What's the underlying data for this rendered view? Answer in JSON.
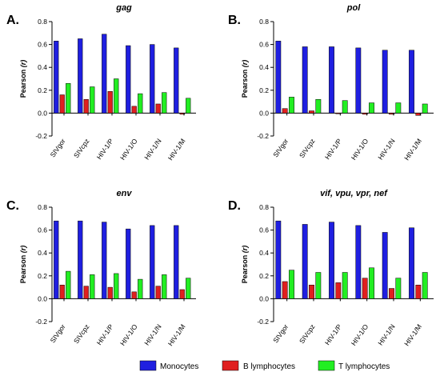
{
  "colors": {
    "monocytes": "#1f1fe0",
    "b_lymphocytes": "#e01f1f",
    "t_lymphocytes": "#22ee22"
  },
  "legend": [
    "Monocytes",
    "B lymphocytes",
    "T lymphocytes"
  ],
  "chart_data": [
    {
      "type": "bar",
      "letter": "A.",
      "title": "gag",
      "ylabel_main": "Pearson ",
      "ylabel_sym": "(r)",
      "categories": [
        "SIVgor",
        "SIVcpz",
        "HIV-1/P",
        "HIV-1/O",
        "HIV-1/N",
        "HIV-1/M"
      ],
      "series": [
        {
          "name": "Monocytes",
          "values": [
            0.63,
            0.65,
            0.69,
            0.59,
            0.6,
            0.57
          ]
        },
        {
          "name": "B lymphocytes",
          "values": [
            0.16,
            0.12,
            0.19,
            0.06,
            0.08,
            -0.01
          ]
        },
        {
          "name": "T lymphocytes",
          "values": [
            0.26,
            0.23,
            0.3,
            0.17,
            0.18,
            0.13
          ]
        }
      ],
      "ylim": [
        -0.2,
        0.8
      ],
      "yticks": [
        "-0.2",
        "0.0",
        "0.2",
        "0.4",
        "0.6",
        "0.8"
      ]
    },
    {
      "type": "bar",
      "letter": "B.",
      "title": "pol",
      "ylabel_main": "Pearson ",
      "ylabel_sym": "(r)",
      "categories": [
        "SIVgor",
        "SIVcpz",
        "HIV-1/P",
        "HIV-1/O",
        "HIV-1/N",
        "HIV-1/M"
      ],
      "series": [
        {
          "name": "Monocytes",
          "values": [
            0.63,
            0.58,
            0.58,
            0.57,
            0.55,
            0.55
          ]
        },
        {
          "name": "B lymphocytes",
          "values": [
            0.04,
            0.02,
            0.0,
            -0.01,
            -0.01,
            -0.02
          ]
        },
        {
          "name": "T lymphocytes",
          "values": [
            0.14,
            0.12,
            0.11,
            0.09,
            0.09,
            0.08
          ]
        }
      ],
      "ylim": [
        -0.2,
        0.8
      ],
      "yticks": [
        "-0.2",
        "0.0",
        "0.2",
        "0.4",
        "0.6",
        "0.8"
      ]
    },
    {
      "type": "bar",
      "letter": "C.",
      "title": "env",
      "ylabel_main": "Pearson ",
      "ylabel_sym": "(r)",
      "categories": [
        "SIVgor",
        "SIVcpz",
        "HIV-1/P",
        "HIV-1/O",
        "HIV-1/N",
        "HIV-1/M"
      ],
      "series": [
        {
          "name": "Monocytes",
          "values": [
            0.68,
            0.68,
            0.67,
            0.61,
            0.64,
            0.64
          ]
        },
        {
          "name": "B lymphocytes",
          "values": [
            0.12,
            0.11,
            0.1,
            0.06,
            0.11,
            0.08
          ]
        },
        {
          "name": "T lymphocytes",
          "values": [
            0.24,
            0.21,
            0.22,
            0.17,
            0.21,
            0.18
          ]
        }
      ],
      "ylim": [
        -0.2,
        0.8
      ],
      "yticks": [
        "-0.2",
        "0.0",
        "0.2",
        "0.4",
        "0.6",
        "0.8"
      ]
    },
    {
      "type": "bar",
      "letter": "D.",
      "title": "vif, vpu, vpr, nef",
      "ylabel_main": "Pearson ",
      "ylabel_sym": "(r)",
      "categories": [
        "SIVgor",
        "SIVcpz",
        "HIV-1/P",
        "HIV-1/O",
        "HIV-1/N",
        "HIV-1/M"
      ],
      "series": [
        {
          "name": "Monocytes",
          "values": [
            0.68,
            0.65,
            0.67,
            0.64,
            0.58,
            0.62
          ]
        },
        {
          "name": "B lymphocytes",
          "values": [
            0.15,
            0.12,
            0.14,
            0.18,
            0.09,
            0.12
          ]
        },
        {
          "name": "T lymphocytes",
          "values": [
            0.25,
            0.23,
            0.23,
            0.27,
            0.18,
            0.23
          ]
        }
      ],
      "ylim": [
        -0.2,
        0.8
      ],
      "yticks": [
        "-0.2",
        "0.0",
        "0.2",
        "0.4",
        "0.6",
        "0.8"
      ]
    }
  ]
}
